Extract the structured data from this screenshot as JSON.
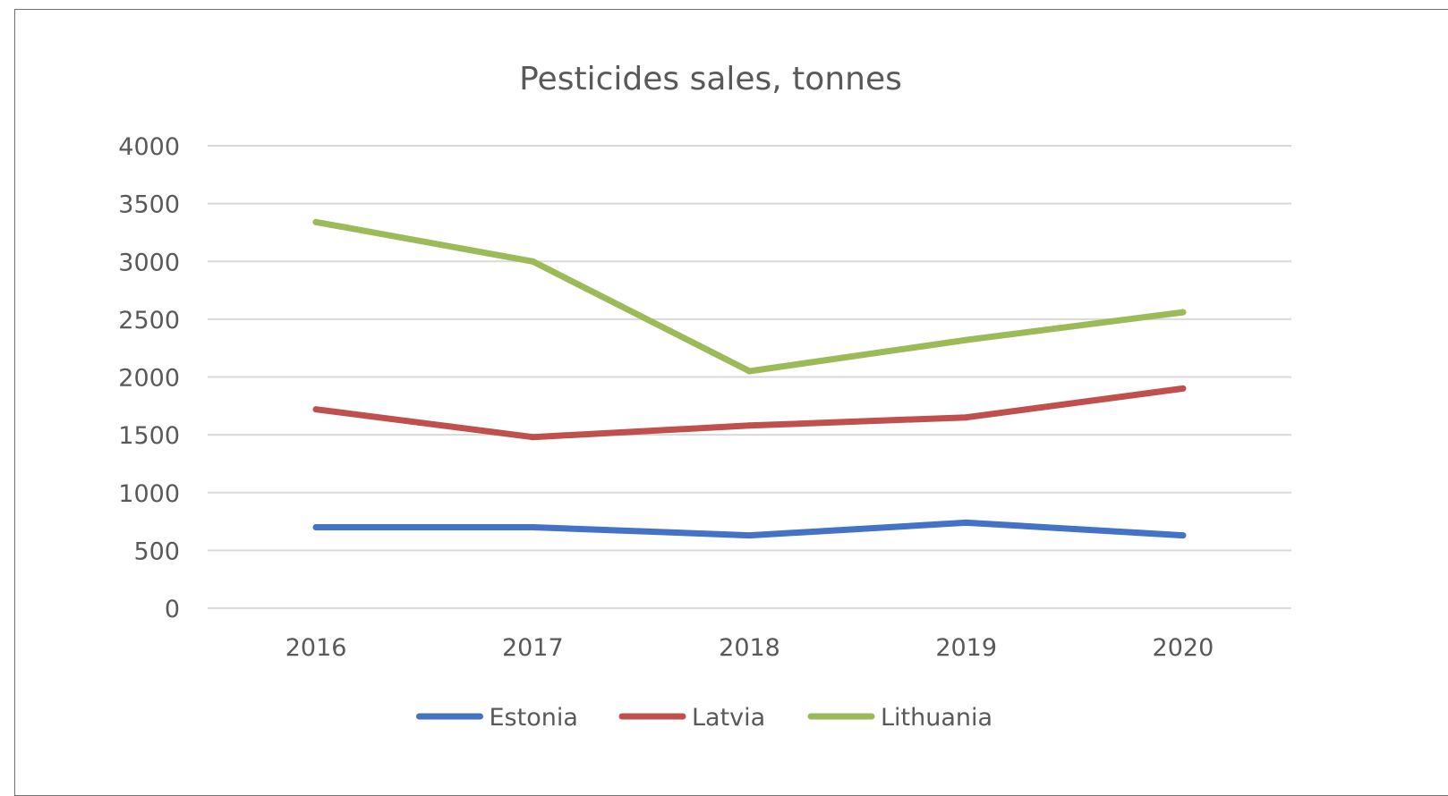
{
  "chart_data": {
    "type": "line",
    "title": "Pesticides sales, tonnes",
    "categories": [
      "2016",
      "2017",
      "2018",
      "2019",
      "2020"
    ],
    "ylim": [
      0,
      4000
    ],
    "yticks": [
      0,
      500,
      1000,
      1500,
      2000,
      2500,
      3000,
      3500,
      4000
    ],
    "grid": true,
    "legend": "bottom",
    "series": [
      {
        "name": "Estonia",
        "color": "#4472c4",
        "values": [
          700,
          700,
          630,
          740,
          630
        ]
      },
      {
        "name": "Latvia",
        "color": "#c0504d",
        "values": [
          1720,
          1480,
          1580,
          1650,
          1900
        ]
      },
      {
        "name": "Lithuania",
        "color": "#9bbb59",
        "values": [
          3340,
          3000,
          2050,
          2320,
          2560
        ]
      }
    ]
  }
}
